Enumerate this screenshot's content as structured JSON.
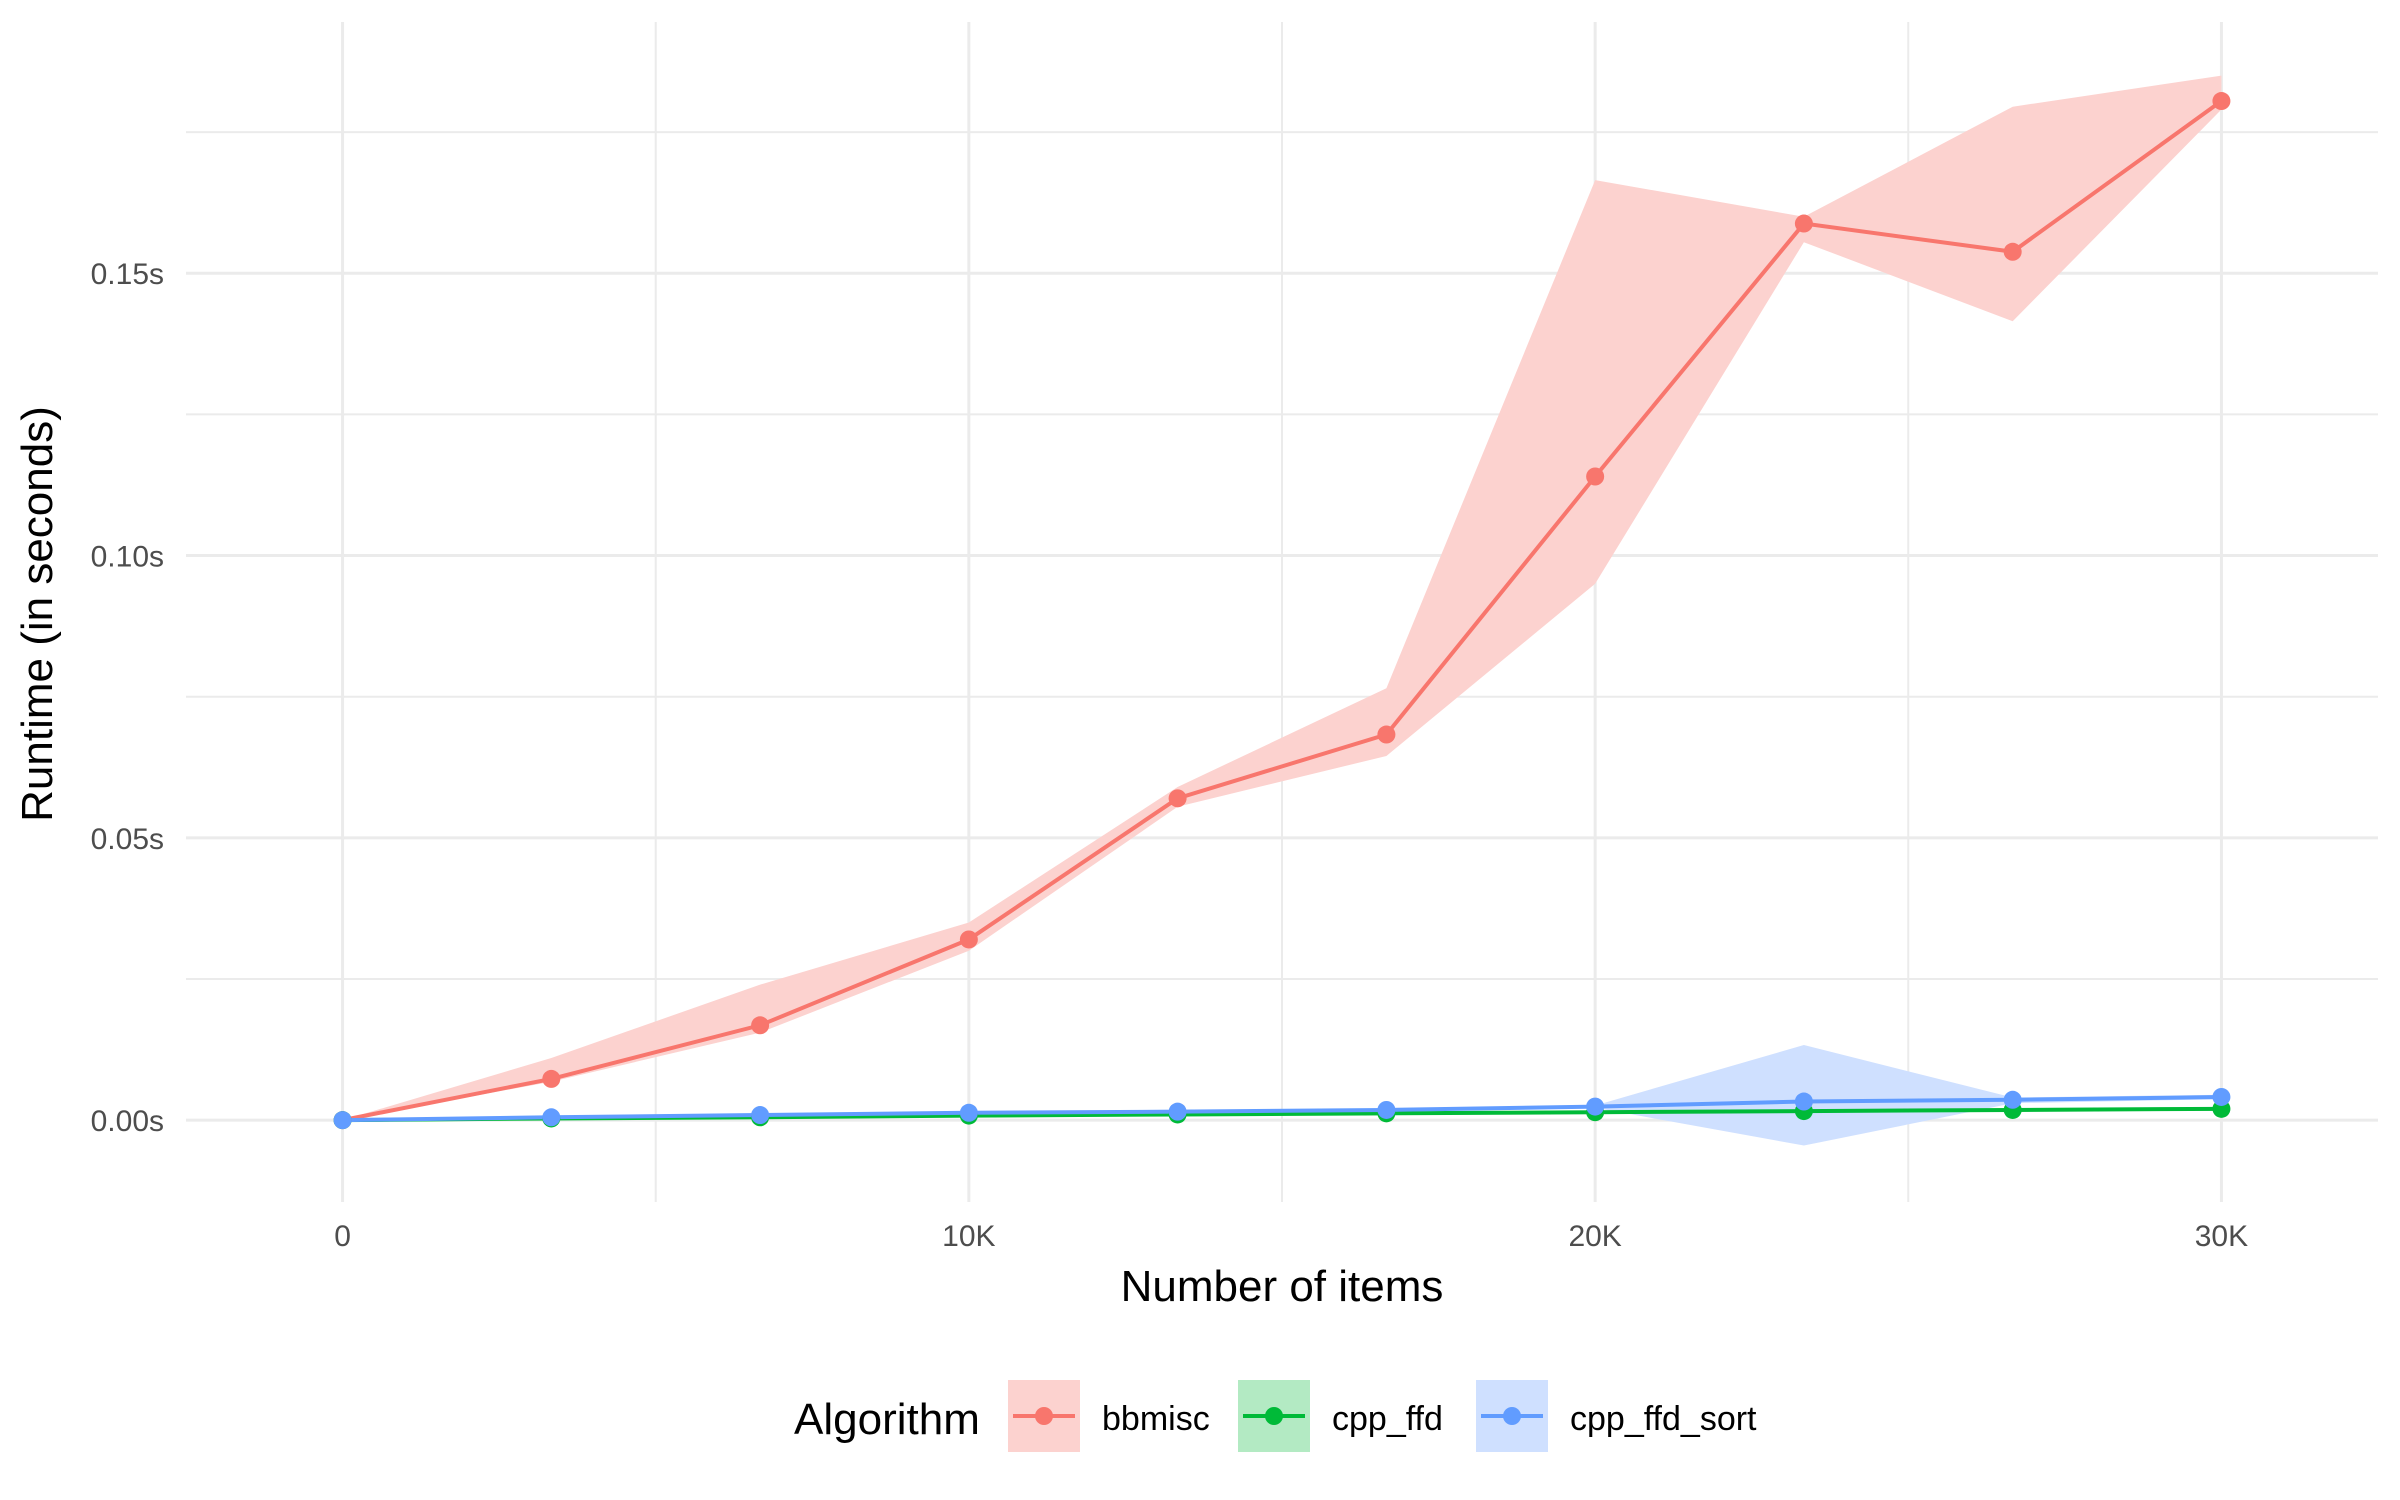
{
  "chart_data": {
    "type": "line",
    "xlabel": "Number of items",
    "ylabel": "Runtime (in seconds)",
    "xlim": [
      -2500,
      32500
    ],
    "ylim": [
      -0.0145,
      0.1945
    ],
    "x_ticks": [
      {
        "value": 0,
        "label": "0"
      },
      {
        "value": 10000,
        "label": "10K"
      },
      {
        "value": 20000,
        "label": "20K"
      },
      {
        "value": 30000,
        "label": "30K"
      }
    ],
    "x_minor_ticks": [
      5000,
      15000,
      25000
    ],
    "y_ticks": [
      {
        "value": 0,
        "label": "0.00s"
      },
      {
        "value": 0.05,
        "label": "0.05s"
      },
      {
        "value": 0.1,
        "label": "0.10s"
      },
      {
        "value": 0.15,
        "label": "0.15s"
      }
    ],
    "y_minor_ticks": [
      0.025,
      0.075,
      0.125,
      0.175
    ],
    "grid": true,
    "legend": {
      "title": "Algorithm",
      "position": "bottom"
    },
    "x": [
      0,
      3333,
      6667,
      10000,
      13333,
      16667,
      20000,
      23333,
      26667,
      30000
    ],
    "series": [
      {
        "name": "bbmisc",
        "color": "#F8766D",
        "fill": "#FCD2CF",
        "values": [
          0.0,
          0.0073,
          0.0168,
          0.032,
          0.057,
          0.0683,
          0.114,
          0.1588,
          0.1538,
          0.1805
        ],
        "lower": [
          0.0,
          0.0068,
          0.0155,
          0.03,
          0.0555,
          0.0645,
          0.095,
          0.1555,
          0.1415,
          0.179
        ],
        "upper": [
          0.0,
          0.011,
          0.024,
          0.035,
          0.059,
          0.0765,
          0.1665,
          0.16,
          0.1795,
          0.185
        ]
      },
      {
        "name": "cpp_ffd",
        "color": "#00BA38",
        "fill": "#B3EAC3",
        "values": [
          0.0,
          0.0003,
          0.0005,
          0.0008,
          0.001,
          0.0012,
          0.0014,
          0.0016,
          0.0018,
          0.002
        ],
        "lower": [
          0.0,
          0.0002,
          0.0004,
          0.0007,
          0.0009,
          0.0011,
          0.0013,
          0.0015,
          0.0017,
          0.0019
        ],
        "upper": [
          0.0,
          0.0004,
          0.0006,
          0.0009,
          0.0011,
          0.0013,
          0.0015,
          0.0017,
          0.0019,
          0.0021
        ]
      },
      {
        "name": "cpp_ffd_sort",
        "color": "#619CFF",
        "fill": "#CFE0FF",
        "values": [
          0.0,
          0.0005,
          0.0009,
          0.0013,
          0.0015,
          0.0018,
          0.0024,
          0.0033,
          0.0036,
          0.0041
        ],
        "lower": [
          0.0,
          0.0004,
          0.0008,
          0.0012,
          0.0014,
          0.0017,
          0.0022,
          -0.0045,
          0.003,
          0.0037
        ],
        "upper": [
          0.0,
          0.0006,
          0.001,
          0.0014,
          0.0016,
          0.0019,
          0.0026,
          0.0133,
          0.004,
          0.0045
        ]
      }
    ]
  }
}
